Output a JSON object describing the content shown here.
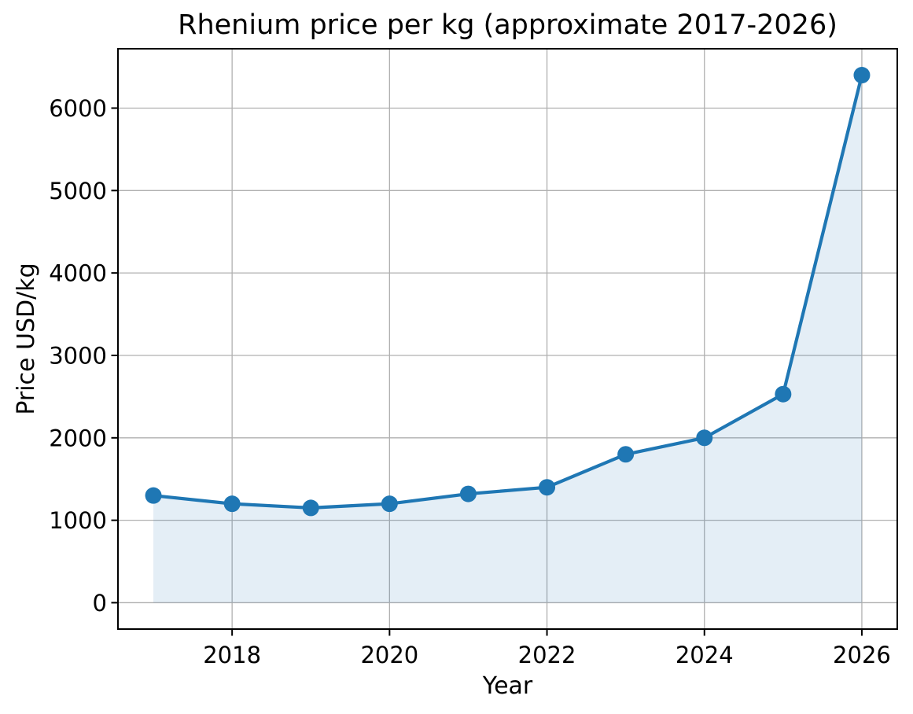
{
  "chart_data": {
    "type": "line",
    "title": "Rhenium price per kg (approximate 2017-2026)",
    "xlabel": "Year",
    "ylabel": "Price USD/kg",
    "x": [
      2017,
      2018,
      2019,
      2020,
      2021,
      2022,
      2023,
      2024,
      2025,
      2026
    ],
    "values": [
      1300,
      1200,
      1150,
      1200,
      1320,
      1400,
      1800,
      2000,
      2530,
      6400
    ],
    "x_ticks": [
      2018,
      2020,
      2022,
      2024,
      2026
    ],
    "y_ticks": [
      0,
      1000,
      2000,
      3000,
      4000,
      5000,
      6000
    ],
    "xlim": [
      2016.55,
      2026.45
    ],
    "ylim": [
      -320,
      6720
    ],
    "grid": true,
    "legend": false,
    "marker": "circle",
    "area_fill_to": 0,
    "colors": {
      "line": "#1f77b4",
      "marker": "#1f77b4",
      "area": "#1f77b4",
      "area_opacity": 0.12,
      "grid": "#b0b0b0",
      "axis": "#000000",
      "text": "#000000",
      "background": "#ffffff"
    }
  }
}
